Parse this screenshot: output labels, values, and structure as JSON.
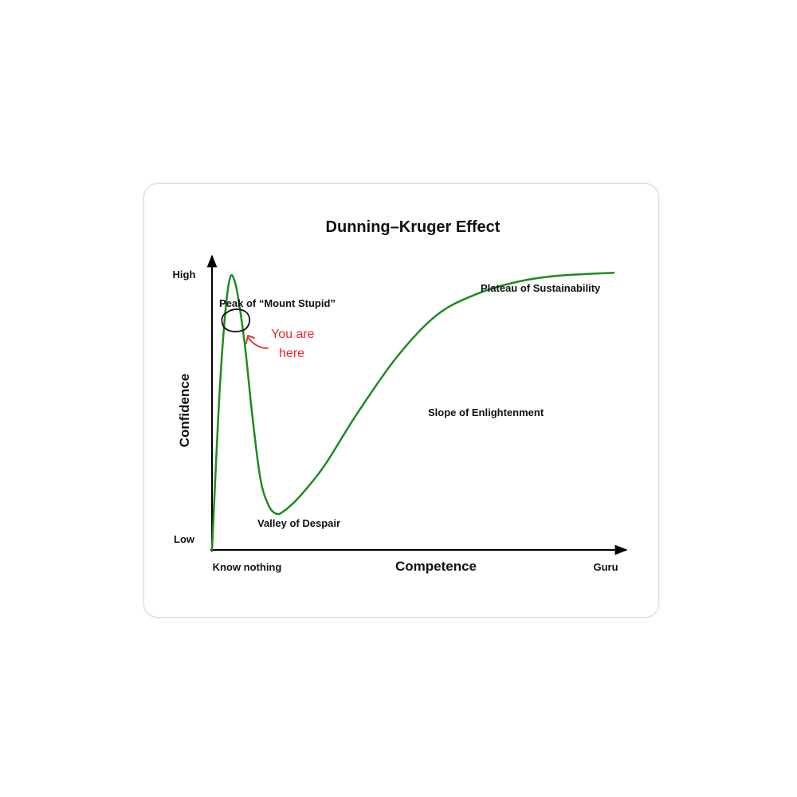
{
  "chart_data": {
    "type": "line",
    "title": "Dunning–Kruger Effect",
    "xlabel": "Competence",
    "ylabel": "Confidence",
    "x_tick_labels": [
      "Know nothing",
      "Guru"
    ],
    "y_tick_labels": [
      "Low",
      "High"
    ],
    "xlim": [
      0,
      100
    ],
    "ylim": [
      0,
      100
    ],
    "grid": false,
    "series": [
      {
        "color": "#1e8a1e",
        "x": [
          0,
          2,
          4,
          5.7,
          8,
          10,
          12,
          14,
          16,
          18,
          22,
          28,
          36,
          46,
          56,
          66,
          76,
          86,
          100
        ],
        "y": [
          0,
          55,
          87,
          89,
          70,
          45,
          24,
          15,
          12,
          13,
          18,
          28,
          45,
          64,
          78,
          85,
          89,
          91,
          92
        ]
      }
    ],
    "annotations": [
      {
        "text": "Peak of “Mount Stupid”"
      },
      {
        "text": "Valley of Despair"
      },
      {
        "text": "Slope of Enlightenment"
      },
      {
        "text": "Plateau of Sustainability"
      }
    ],
    "handwritten_note": {
      "line1": "You are",
      "line2": "here",
      "color": "#e8262a"
    }
  }
}
